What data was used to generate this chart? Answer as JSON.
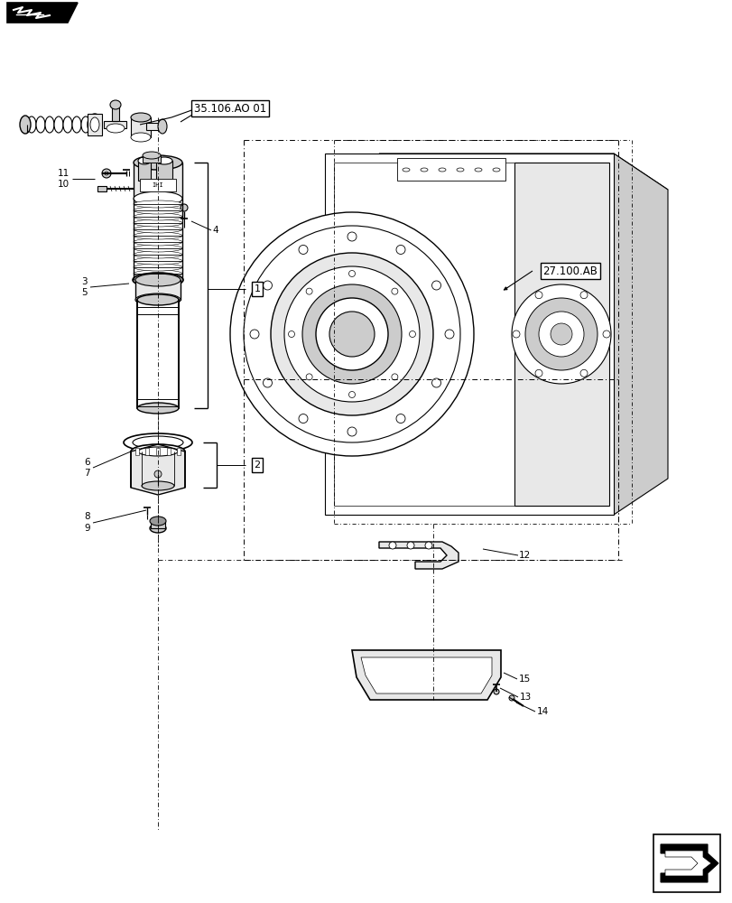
{
  "bg_color": "#ffffff",
  "lc": "#000000",
  "fig_width": 8.12,
  "fig_height": 10.0,
  "dpi": 100,
  "ref1": "35.106.AO 01",
  "ref2": "27.100.AB",
  "items": [
    "1",
    "2",
    "3",
    "4",
    "5",
    "6",
    "7",
    "8",
    "9",
    "10",
    "11",
    "12",
    "13",
    "14",
    "15"
  ],
  "gray_light": "#e8e8e8",
  "gray_mid": "#cccccc",
  "gray_dark": "#999999",
  "dashdot_style": [
    0,
    [
      6,
      3,
      1,
      3
    ]
  ]
}
